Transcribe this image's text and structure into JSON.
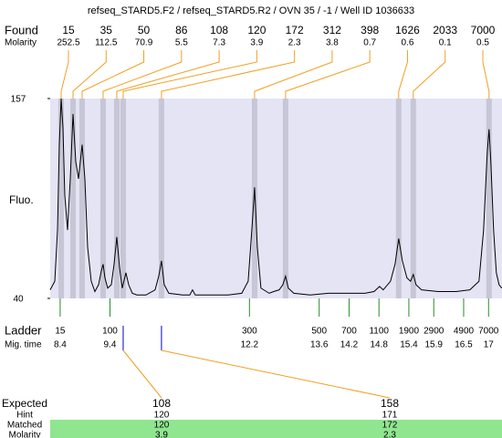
{
  "header": {
    "title": "refseq_STARD5.F2 / refseq_STARD5.R2 / OVN 35 / -1 / Well ID 1036633"
  },
  "found": {
    "label": "Found",
    "sub_label": "Molarity",
    "sizes": [
      15,
      35,
      50,
      86,
      108,
      120,
      172,
      312,
      398,
      1626,
      2033,
      7000
    ],
    "molarity": [
      252.5,
      112.5,
      70.9,
      5.5,
      7.3,
      3.9,
      2.3,
      3.8,
      0.7,
      0.6,
      0.1,
      0.5
    ],
    "times": [
      8.42,
      8.658,
      8.841,
      9.262,
      9.537,
      9.665,
      10.434,
      12.303,
      12.925,
      15.196,
      15.489,
      17.01
    ]
  },
  "chart_data": {
    "type": "line",
    "y_label": "Fluo.",
    "xlim": [
      8.2,
      17.27
    ],
    "ylim": [
      40,
      157
    ],
    "yticks": [
      40,
      157
    ],
    "x": [
      8.2,
      8.292,
      8.347,
      8.383,
      8.42,
      8.456,
      8.493,
      8.548,
      8.603,
      8.658,
      8.713,
      8.768,
      8.841,
      8.896,
      8.951,
      9.024,
      9.097,
      9.171,
      9.226,
      9.262,
      9.299,
      9.354,
      9.427,
      9.482,
      9.537,
      9.592,
      9.647,
      9.72,
      9.775,
      9.848,
      9.94,
      10.123,
      10.306,
      10.379,
      10.434,
      10.489,
      10.581,
      10.856,
      11.002,
      11.057,
      11.112,
      11.405,
      11.771,
      12.046,
      12.174,
      12.248,
      12.303,
      12.358,
      12.431,
      12.596,
      12.687,
      12.797,
      12.87,
      12.925,
      12.98,
      13.09,
      13.42,
      13.786,
      14.152,
      14.519,
      14.702,
      14.812,
      14.885,
      15.031,
      15.123,
      15.196,
      15.27,
      15.361,
      15.434,
      15.489,
      15.544,
      15.654,
      15.984,
      16.35,
      16.625,
      16.808,
      16.9,
      16.973,
      17.01,
      17.046,
      17.101,
      17.156,
      17.211,
      17.266
    ],
    "series": [
      {
        "color": "#000000",
        "values": [
          45,
          50,
          80,
          130,
          157,
          140,
          100,
          80,
          110,
          148,
          120,
          110,
          130,
          110,
          70,
          50,
          44,
          48,
          56,
          60,
          52,
          46,
          48,
          60,
          76,
          58,
          46,
          55,
          48,
          43,
          42,
          42,
          45,
          53,
          62,
          48,
          43,
          42,
          42,
          45,
          42,
          42,
          42,
          43,
          50,
          80,
          105,
          70,
          46,
          43,
          44,
          45,
          48,
          53,
          46,
          43,
          42,
          43,
          43,
          43,
          44,
          47,
          45,
          50,
          60,
          75,
          62,
          52,
          50,
          54,
          48,
          45,
          44,
          44,
          45,
          50,
          80,
          125,
          139,
          120,
          80,
          55,
          48,
          46
        ]
      }
    ]
  },
  "ladder": {
    "label": "Ladder",
    "sub_label": "Mig. time",
    "sizes": [
      15,
      100,
      300,
      500,
      700,
      1100,
      1900,
      2900,
      4900,
      7000
    ],
    "times": [
      8.4,
      9.4,
      12.2,
      13.6,
      14.2,
      14.8,
      15.4,
      15.9,
      16.5,
      17
    ]
  },
  "expected": {
    "labels": [
      "Expected",
      "Hint",
      "Matched",
      "Molarity"
    ],
    "columns": [
      {
        "expected": 108,
        "hint": 120,
        "matched": 120,
        "molarity": 3.9
      },
      {
        "expected": 158,
        "hint": 171,
        "matched": 172,
        "molarity": 2.3
      }
    ]
  }
}
